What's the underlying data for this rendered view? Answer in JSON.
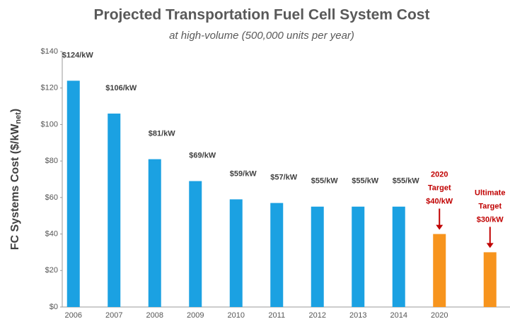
{
  "chart_data": {
    "type": "bar",
    "title": "Projected Transportation Fuel Cell System Cost",
    "subtitle": "at high-volume (500,000 units per year)",
    "ylabel": "FC Systems Cost ($/kW",
    "ylabel_sub": "net",
    "ylabel_end": ")",
    "categories": [
      "2006",
      "2007",
      "2008",
      "2009",
      "2010",
      "2011",
      "2012",
      "2013",
      "2014",
      "2020",
      null
    ],
    "values": [
      124,
      106,
      81,
      69,
      59,
      57,
      55,
      55,
      55,
      40,
      30
    ],
    "value_labels": [
      "$124/kW",
      "$106/kW",
      "$81/kW",
      "$69/kW",
      "$59/kW",
      "$57/kW",
      "$55/kW",
      "$55/kW",
      "$55/kW",
      "$40/kW",
      "$30/kW"
    ],
    "colors": [
      "#1ba1e2",
      "#1ba1e2",
      "#1ba1e2",
      "#1ba1e2",
      "#1ba1e2",
      "#1ba1e2",
      "#1ba1e2",
      "#1ba1e2",
      "#1ba1e2",
      "#f7941d",
      "#f7941d"
    ],
    "annotations": [
      [
        "2020",
        "Target"
      ],
      [
        "Ultimate",
        "Target"
      ]
    ],
    "annotation_color": "#c00000",
    "ylim": [
      0,
      140
    ],
    "yticks": [
      {
        "value": 0,
        "label": "$0"
      },
      {
        "value": 20,
        "label": "$20"
      },
      {
        "value": 40,
        "label": "$40"
      },
      {
        "value": 60,
        "label": "$60"
      },
      {
        "value": 80,
        "label": "$80"
      },
      {
        "value": 100,
        "label": "$100"
      },
      {
        "value": 120,
        "label": "$120"
      },
      {
        "value": 140,
        "label": "$140"
      }
    ],
    "grid": false
  }
}
